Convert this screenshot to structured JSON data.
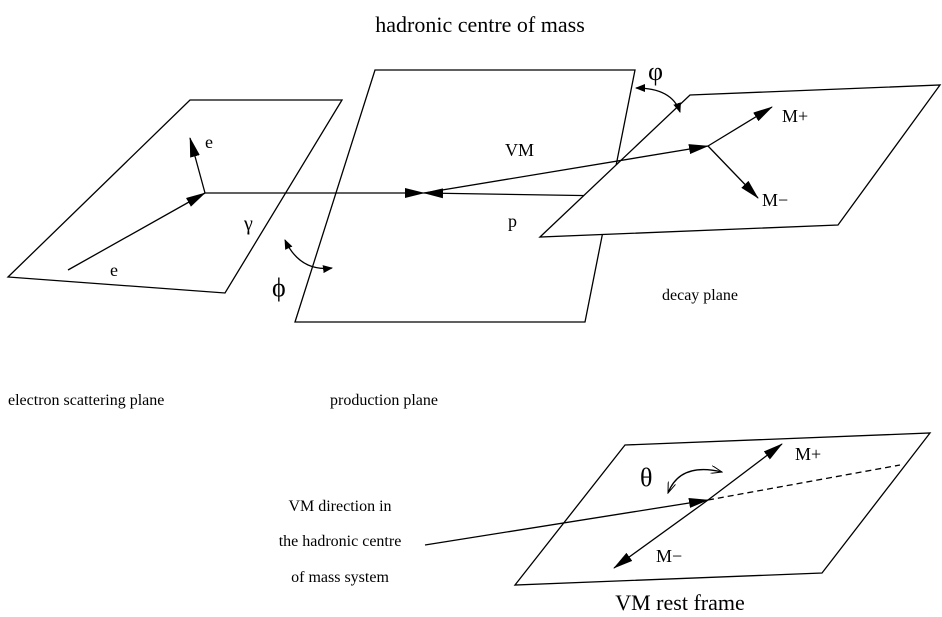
{
  "title": "hadronic centre of mass",
  "planes": {
    "electron_scattering": "electron scattering plane",
    "production": "production plane",
    "decay": "decay plane",
    "rest_frame": "VM rest frame"
  },
  "labels": {
    "e_out": "e",
    "e_in": "e",
    "gamma": "γ",
    "phi_small": "ϕ",
    "phi_big": "φ",
    "vm": "VM",
    "p": "p",
    "m_plus": "M+",
    "m_minus": "M−",
    "theta": "θ",
    "rest_m_plus": "M+",
    "rest_m_minus": "M−"
  },
  "vm_direction": [
    "VM direction in",
    "the hadronic centre",
    "of mass system"
  ]
}
